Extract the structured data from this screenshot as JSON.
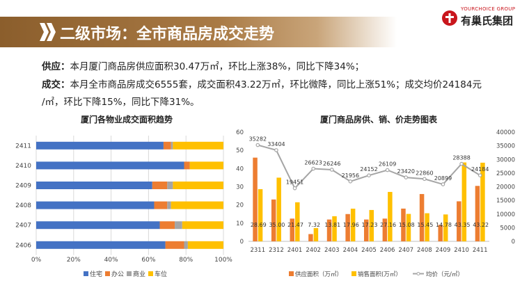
{
  "header": {
    "title": "二级市场：全市商品房成交走势",
    "logo_en": "YOURCHOICE GROUP",
    "logo_cn": "有巢氏集团",
    "colors": {
      "bar": "#8b5e2c",
      "logo_red": "#c9161d"
    }
  },
  "summary": {
    "supply_label": "供应：",
    "supply_text": "本月厦门商品房供应面积30.47万㎡，环比上涨38%，同比下降34%；",
    "deal_label": "成交：",
    "deal_text_line1": "本月全市商品房成交6555套，成交面积43.22万㎡，环比微降，同比上涨51%；成交均价24184元",
    "deal_text_line2": "/㎡，环比下降15%，同比下降31%。"
  },
  "chart_data": [
    {
      "type": "bar",
      "orientation": "horizontal-stacked-100",
      "title": "厦门各物业成交面积趋势",
      "categories": [
        "2411",
        "2410",
        "2409",
        "2408",
        "2407",
        "2406"
      ],
      "x_ticks": [
        "0%",
        "20%",
        "40%",
        "60%",
        "80%",
        "100%"
      ],
      "xlim": [
        0,
        100
      ],
      "legend_position": "bottom",
      "series": [
        {
          "name": "住宅",
          "color": "#4472c4",
          "values": [
            68,
            79,
            62,
            63,
            66,
            69
          ]
        },
        {
          "name": "办公",
          "color": "#ed7d31",
          "values": [
            4,
            3,
            8,
            7,
            8,
            10
          ]
        },
        {
          "name": "商业",
          "color": "#a5a5a5",
          "values": [
            1,
            0,
            3,
            2,
            4,
            2
          ]
        },
        {
          "name": "车位",
          "color": "#ffc000",
          "values": [
            27,
            18,
            27,
            28,
            22,
            19
          ]
        }
      ]
    },
    {
      "type": "bar+line",
      "title": "厦门商品房供、销、价走势图表",
      "categories": [
        "2311",
        "2312",
        "2401",
        "2402",
        "2403",
        "2404",
        "2405",
        "2406",
        "2407",
        "2408",
        "2409",
        "2410",
        "2411"
      ],
      "y_left_ticks": [
        "0",
        "10",
        "20",
        "30",
        "40",
        "50",
        "60"
      ],
      "ylim_left": [
        0,
        60
      ],
      "y_right_ticks": [
        "0",
        "5000",
        "10000",
        "15000",
        "20000",
        "25000",
        "30000",
        "35000",
        "40000"
      ],
      "ylim_right": [
        0,
        40000
      ],
      "legend_position": "bottom",
      "series": [
        {
          "name": "供应面积（万㎡）",
          "color": "#ed7d31",
          "axis": "left",
          "values": [
            46,
            23,
            12.5,
            4,
            12,
            15,
            12,
            12.5,
            18,
            26,
            9,
            22,
            30.47
          ]
        },
        {
          "name": "销售面积(万㎡）",
          "color": "#ffc000",
          "axis": "left",
          "values": [
            28.69,
            35.0,
            21.47,
            7.32,
            13.81,
            17.96,
            17.23,
            27.16,
            15.08,
            15.45,
            14.78,
            43.35,
            43.22
          ],
          "labels": [
            "28.69",
            "35.00",
            "21.47",
            "7.32",
            "13.81",
            "17.96",
            "17.23",
            "27.16",
            "15.08",
            "15.45",
            "14.78",
            "43.35",
            "43.22"
          ]
        },
        {
          "name": "均价（元/㎡）",
          "color": "#a5a5a5",
          "axis": "right",
          "values": [
            35282,
            33404,
            19451,
            26623,
            26246,
            21956,
            24152,
            26109,
            23420,
            22860,
            20899,
            28388,
            24184
          ],
          "labels": [
            "35282",
            "33404",
            "19451",
            "26623",
            "26246",
            "21956",
            "24152",
            "26109",
            "23420",
            "22860",
            "20899",
            "28388",
            "24184"
          ]
        }
      ]
    }
  ]
}
